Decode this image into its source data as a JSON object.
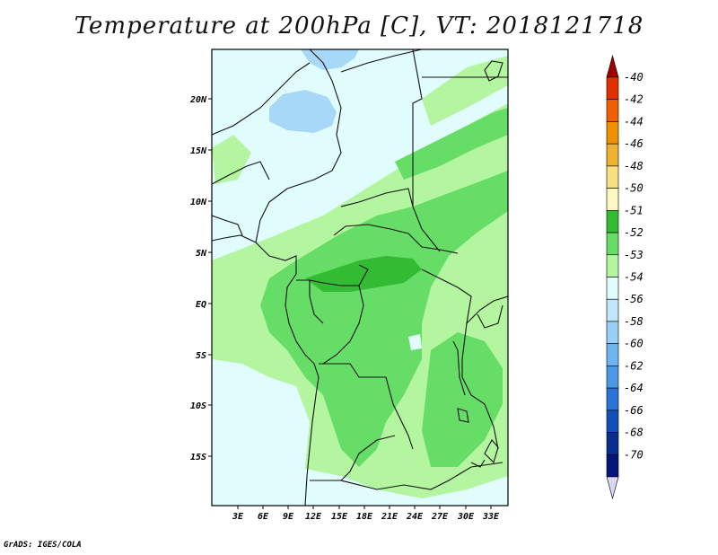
{
  "title": "Temperature at 200hPa [C], VT: 2018121718",
  "credit": "GrADS: IGES/COLA",
  "map": {
    "lat_labels": [
      "20N",
      "15N",
      "10N",
      "5N",
      "EQ",
      "5S",
      "10S",
      "15S"
    ],
    "lon_labels": [
      "3E",
      "6E",
      "9E",
      "12E",
      "15E",
      "18E",
      "21E",
      "24E",
      "27E",
      "30E",
      "33E"
    ]
  },
  "colorbar": {
    "levels": [
      "-40",
      "-42",
      "-44",
      "-46",
      "-48",
      "-50",
      "-51",
      "-52",
      "-53",
      "-54",
      "-56",
      "-58",
      "-60",
      "-62",
      "-64",
      "-66",
      "-68",
      "-70"
    ],
    "colors": [
      "#a00000",
      "#e03000",
      "#f06000",
      "#f09000",
      "#f0b030",
      "#f8e080",
      "#fcf8c0",
      "#33bb33",
      "#66dd66",
      "#b4f5a0",
      "#e0fcfc",
      "#c0e8fa",
      "#98d0f8",
      "#6eb4f0",
      "#4e98e8",
      "#2a74d8",
      "#1050b8",
      "#082e90",
      "#04147a"
    ],
    "low_arrow_color": "#d8d8f0"
  },
  "shading_colors": {
    "land_base": "#b4f5a0",
    "cold": "#e0fcfc",
    "medium": "#66dd66",
    "warm": "#33bb33",
    "very_cold": "#a8d8f8"
  }
}
